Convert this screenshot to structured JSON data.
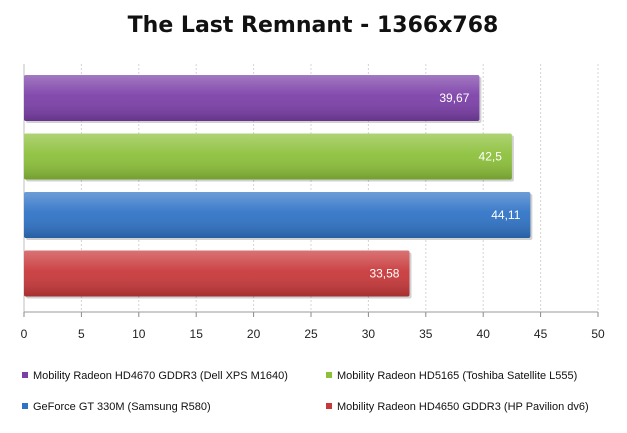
{
  "chart_data": {
    "type": "bar",
    "orientation": "horizontal",
    "title": "The Last Remnant - 1366x768",
    "xlim": [
      0,
      50
    ],
    "x_ticks": [
      "0",
      "5",
      "10",
      "15",
      "20",
      "25",
      "30",
      "35",
      "40",
      "45",
      "50"
    ],
    "grid": true,
    "legend_position": "bottom",
    "series": [
      {
        "name": "Mobility Radeon HD4670 GDDR3 (Dell XPS M1640)",
        "value": 39.67,
        "label": "39,67",
        "color": "#7b3fa8"
      },
      {
        "name": "Mobility Radeon HD5165 (Toshiba Satellite L555)",
        "value": 42.5,
        "label": "42,5",
        "color": "#8cc03a"
      },
      {
        "name": "GeForce GT 330M (Samsung R580)",
        "value": 44.11,
        "label": "44,11",
        "color": "#2f73c6"
      },
      {
        "name": "Mobility Radeon HD4650 GDDR3 (HP Pavilion dv6)",
        "value": 33.58,
        "label": "33,58",
        "color": "#c8383a"
      }
    ]
  }
}
